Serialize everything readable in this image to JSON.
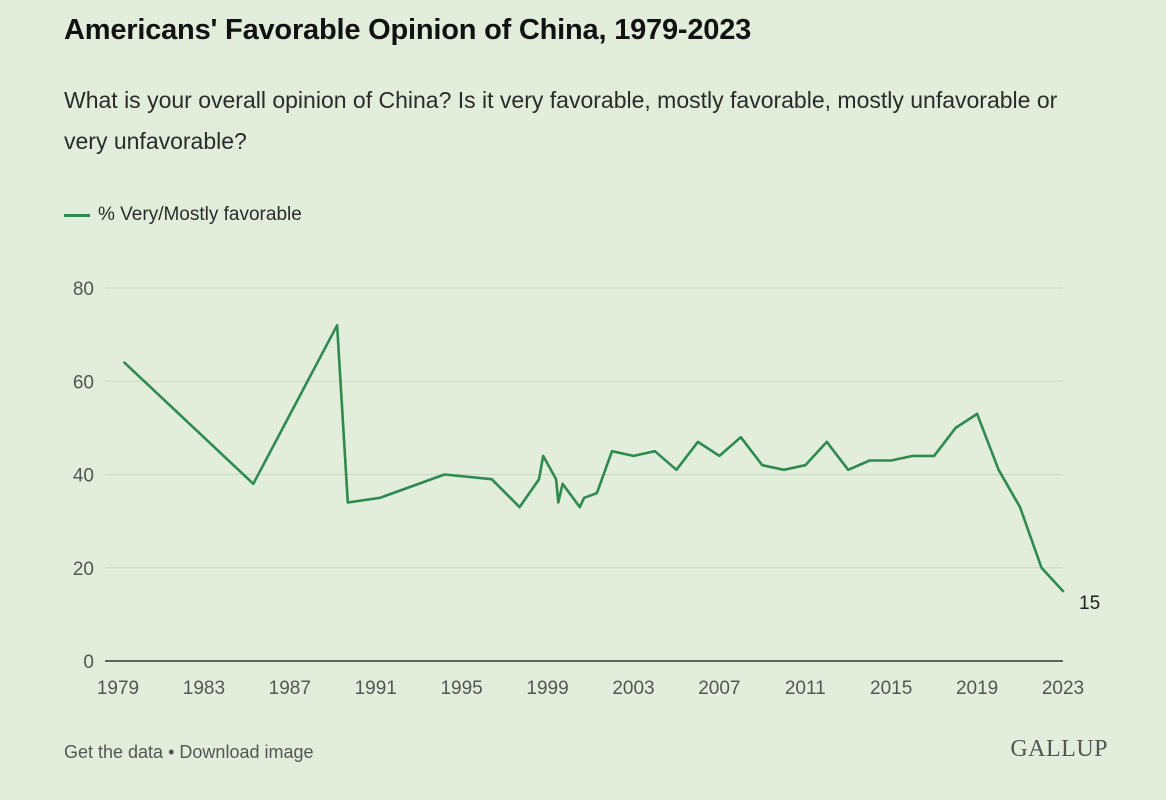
{
  "header": {
    "title": "Americans' Favorable Opinion of China, 1979-2023",
    "subtitle": "What is your overall opinion of China? Is it very favorable, mostly favorable, mostly unfavorable or very unfavorable?"
  },
  "legend": {
    "label": "% Very/Mostly favorable",
    "color": "#2e8b4f"
  },
  "chart_data": {
    "type": "line",
    "title": "Americans' Favorable Opinion of China, 1979-2023",
    "xlabel": "",
    "ylabel": "",
    "xlim": [
      1979,
      2023
    ],
    "ylim": [
      0,
      80
    ],
    "yticks": [
      0,
      20,
      40,
      60,
      80
    ],
    "xticks": [
      1979,
      1983,
      1987,
      1991,
      1995,
      1999,
      2003,
      2007,
      2011,
      2015,
      2019,
      2023
    ],
    "grid": true,
    "legend_position": "top-left",
    "series": [
      {
        "name": "% Very/Mostly favorable",
        "color": "#2e8b4f",
        "x": [
          1979.3,
          1985.3,
          1989.2,
          1989.7,
          1991.2,
          1994.2,
          1996.4,
          1997.7,
          1998.6,
          1998.8,
          1999.4,
          1999.5,
          1999.7,
          2000.5,
          2000.7,
          2001.3,
          2002.0,
          2003.0,
          2004.0,
          2005.0,
          2006.0,
          2007.0,
          2008.0,
          2009.0,
          2010.0,
          2011.0,
          2012.0,
          2013.0,
          2014.0,
          2015.0,
          2016.0,
          2017.0,
          2018.0,
          2019.0,
          2020.0,
          2021.0,
          2022.0,
          2023.0
        ],
        "values": [
          64,
          38,
          72,
          34,
          35,
          40,
          39,
          33,
          39,
          44,
          39,
          34,
          38,
          33,
          35,
          36,
          45,
          44,
          45,
          41,
          47,
          44,
          48,
          42,
          41,
          42,
          47,
          41,
          43,
          43,
          44,
          44,
          50,
          53,
          41,
          33,
          20,
          15
        ]
      }
    ],
    "annotations": [
      {
        "text": "15",
        "x": 2023,
        "y": 15
      }
    ]
  },
  "footer": {
    "get_data": "Get the data",
    "separator": "•",
    "download": "Download image",
    "brand": "GALLUP"
  }
}
